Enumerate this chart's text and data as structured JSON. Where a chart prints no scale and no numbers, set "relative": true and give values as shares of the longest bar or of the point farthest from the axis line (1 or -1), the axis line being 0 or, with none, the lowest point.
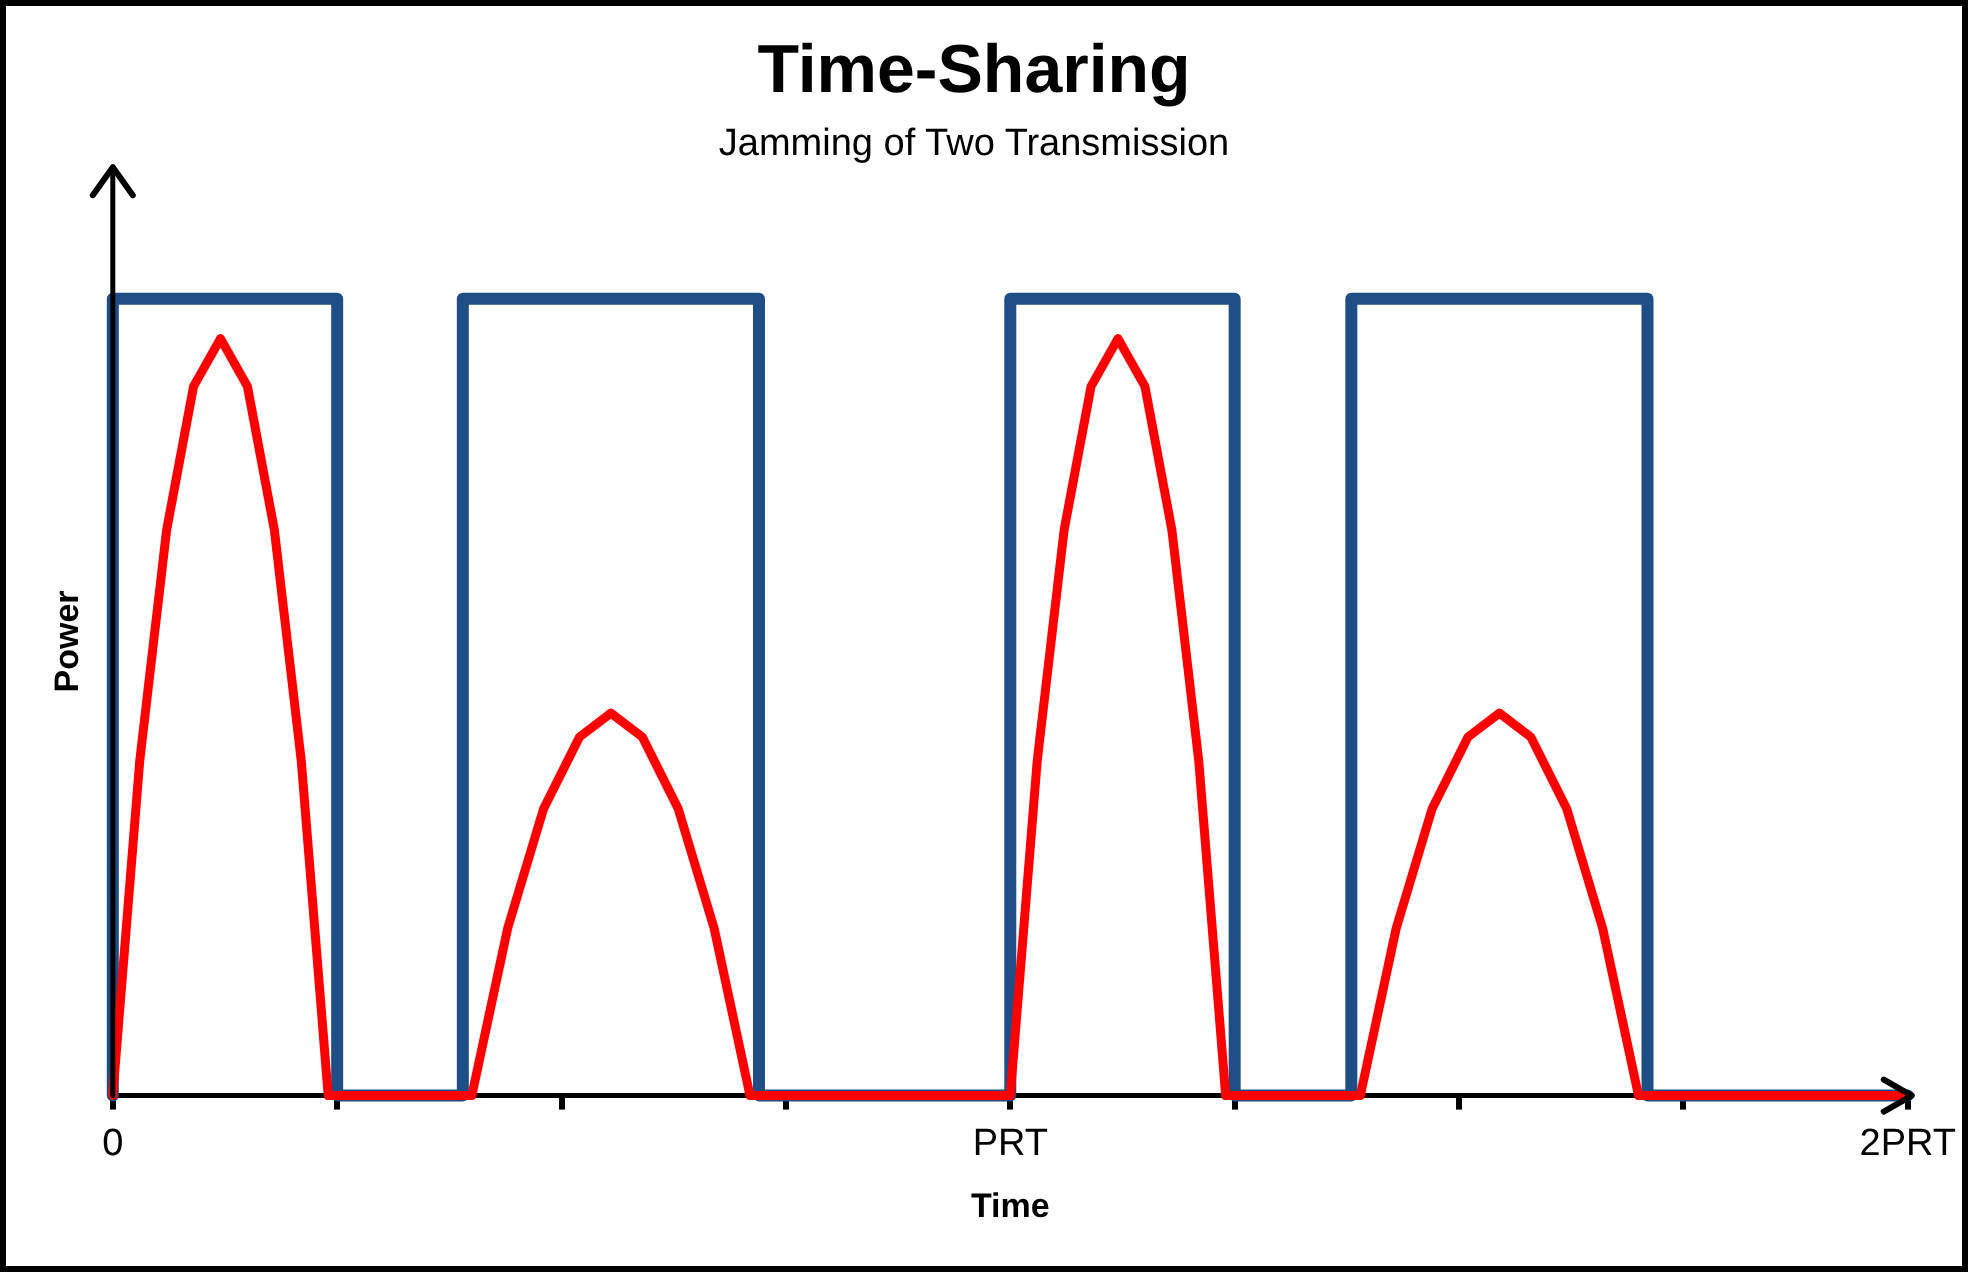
{
  "chart_data": {
    "type": "line",
    "title": "Time-Sharing",
    "subtitle": "Jamming of Two Transmission",
    "xlabel": "Time",
    "ylabel": "Power",
    "relative": true,
    "legend": false,
    "marker": "none",
    "xlim": [
      0,
      2
    ],
    "xticks": [
      0,
      {
        "value": 0.25,
        "label": null
      },
      {
        "value": 0.5,
        "label": null
      },
      {
        "value": 0.75,
        "label": null
      },
      {
        "value": 1,
        "label": "PRT"
      },
      {
        "value": 1.25,
        "label": null
      },
      {
        "value": 1.5,
        "label": null
      },
      {
        "value": 1.75,
        "label": null
      },
      {
        "value": 2,
        "label": "2PRT"
      }
    ],
    "series": [
      {
        "color": "#1f4e86",
        "x": [
          0,
          0,
          0.25,
          0.25,
          0.39,
          0.39,
          0.72,
          0.72,
          1,
          1,
          1.25,
          1.25,
          1.38,
          1.38,
          1.71,
          1.71,
          2
        ],
        "values": [
          0,
          1,
          1,
          0,
          0,
          1,
          1,
          0,
          0,
          1,
          1,
          0,
          0,
          1,
          1,
          0,
          0
        ]
      },
      {
        "color": "#ff0000",
        "x": [
          0,
          0.03,
          0.06,
          0.09,
          0.12,
          0.15,
          0.18,
          0.21,
          0.24,
          0.4,
          0.44,
          0.48,
          0.52,
          0.555,
          0.59,
          0.63,
          0.67,
          0.71,
          1,
          1.03,
          1.06,
          1.09,
          1.12,
          1.15,
          1.18,
          1.21,
          1.24,
          1.39,
          1.43,
          1.47,
          1.51,
          1.545,
          1.58,
          1.62,
          1.66,
          1.7,
          2
        ],
        "values": [
          0,
          0.42,
          0.71,
          0.89,
          0.95,
          0.89,
          0.71,
          0.42,
          0,
          0,
          0.21,
          0.36,
          0.45,
          0.48,
          0.45,
          0.36,
          0.21,
          0,
          0,
          0.42,
          0.71,
          0.89,
          0.95,
          0.89,
          0.71,
          0.42,
          0,
          0,
          0.21,
          0.36,
          0.45,
          0.48,
          0.45,
          0.36,
          0.21,
          0,
          0
        ]
      }
    ]
  }
}
